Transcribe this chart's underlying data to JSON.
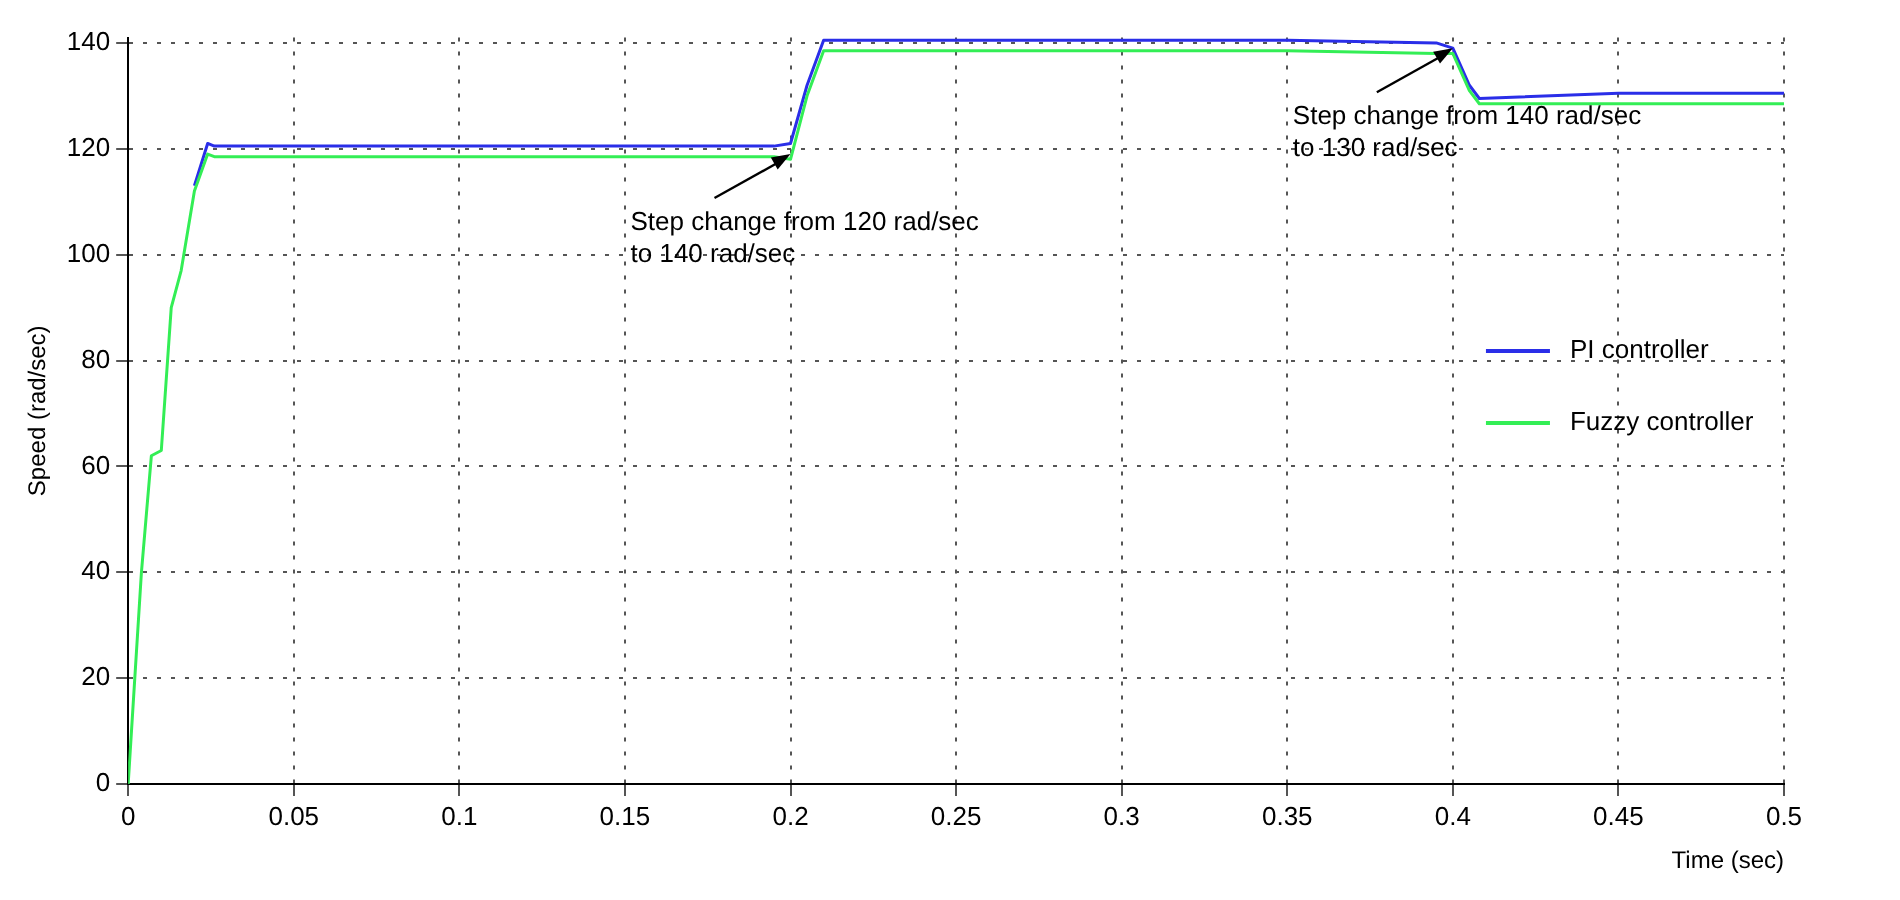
{
  "chart_data": {
    "type": "line",
    "xlabel": "Time (sec)",
    "ylabel": "Speed (rad/sec)",
    "xlim": [
      0,
      0.5
    ],
    "xticks": [
      0,
      0.05,
      0.1,
      0.15,
      0.2,
      0.25,
      0.3,
      0.35,
      0.4,
      0.45,
      0.5
    ],
    "ylim": [
      0,
      141
    ],
    "yticks": [
      0,
      20,
      40,
      60,
      80,
      100,
      120,
      140
    ],
    "grid": true,
    "legend": "right",
    "marker": "none",
    "line_style": "solid",
    "series": [
      {
        "name": "PI controller",
        "color": "#2a2ee8",
        "x": [
          0.02,
          0.024,
          0.026,
          0.05,
          0.1,
          0.15,
          0.195,
          0.2,
          0.205,
          0.21,
          0.25,
          0.3,
          0.35,
          0.395,
          0.4,
          0.405,
          0.408,
          0.45,
          0.5
        ],
        "values": [
          113,
          121,
          120.5,
          120.5,
          120.5,
          120.5,
          120.5,
          121,
          132,
          140.5,
          140.5,
          140.5,
          140.5,
          140,
          139,
          132,
          129.5,
          130.5,
          130.5
        ]
      },
      {
        "name": "Fuzzy controller",
        "color": "#33ee55",
        "x": [
          0,
          0.004,
          0.007,
          0.01,
          0.013,
          0.016,
          0.02,
          0.024,
          0.026,
          0.05,
          0.1,
          0.15,
          0.195,
          0.2,
          0.205,
          0.21,
          0.25,
          0.3,
          0.35,
          0.395,
          0.4,
          0.405,
          0.408,
          0.45,
          0.5
        ],
        "values": [
          0,
          40,
          62,
          63,
          90,
          97,
          112,
          119,
          118.5,
          118.5,
          118.5,
          118.5,
          118.5,
          118,
          130,
          138.5,
          138.5,
          138.5,
          138.5,
          138,
          138,
          131,
          128.5,
          128.5,
          128.5
        ]
      }
    ],
    "annotations": [
      {
        "text": "Step change from 120 rad/sec\nto 140 rad/sec",
        "x": 0.2,
        "y": 119
      },
      {
        "text": "Step change from 140 rad/sec\nto 130 rad/sec",
        "x": 0.4,
        "y": 139
      }
    ]
  }
}
